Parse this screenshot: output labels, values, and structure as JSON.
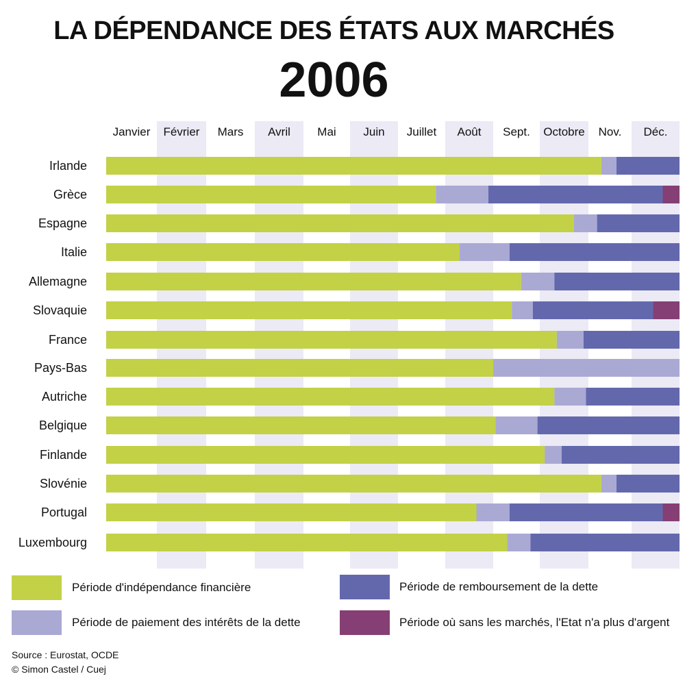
{
  "title": "LA DÉPENDANCE DES ÉTATS AUX MARCHÉS",
  "subtitle": "2006",
  "colors": {
    "independance": "#c2d146",
    "interets": "#aaa9d4",
    "remboursement": "#6368ad",
    "sans_argent": "#853f74",
    "column_shade": "#ebeaf5"
  },
  "legend": [
    {
      "key": "independance",
      "label": "Période d'indépendance financière"
    },
    {
      "key": "remboursement",
      "label": "Période de remboursement de la dette"
    },
    {
      "key": "interets",
      "label": "Période de paiement des intérêts de la dette"
    },
    {
      "key": "sans_argent",
      "label": "Période où sans les marchés, l'Etat n'a plus d'argent"
    }
  ],
  "source": {
    "line1": "Source : Eurostat, OCDE",
    "line2": "© Simon Castel / Cuej"
  },
  "chart_data": {
    "type": "bar",
    "orientation": "horizontal",
    "stacked": true,
    "x_unit": "months",
    "xlim": [
      0,
      12
    ],
    "months": [
      "Janvier",
      "Février",
      "Mars",
      "Avril",
      "Mai",
      "Juin",
      "Juillet",
      "Août",
      "Sept.",
      "Octobre",
      "Nov.",
      "Déc."
    ],
    "shaded_months": [
      "Février",
      "Avril",
      "Juin",
      "Août",
      "Octobre",
      "Déc."
    ],
    "categories": [
      "Irlande",
      "Grèce",
      "Espagne",
      "Italie",
      "Allemagne",
      "Slovaquie",
      "France",
      "Pays-Bas",
      "Autriche",
      "Belgique",
      "Finlande",
      "Slovénie",
      "Portugal",
      "Luxembourg"
    ],
    "series": [
      {
        "name": "Période d'indépendance financière",
        "key": "independance",
        "values": [
          10.3,
          6.8,
          9.7,
          7.3,
          8.6,
          8.4,
          9.35,
          8.0,
          9.3,
          8.05,
          9.1,
          10.3,
          7.65,
          8.3
        ]
      },
      {
        "name": "Période de paiement des intérêts de la dette",
        "key": "interets",
        "values": [
          0.35,
          1.1,
          0.5,
          1.05,
          0.7,
          0.45,
          0.55,
          4.0,
          0.65,
          0.9,
          0.35,
          0.35,
          0.7,
          0.5
        ]
      },
      {
        "name": "Période de remboursement de la dette",
        "key": "remboursement",
        "values": [
          1.35,
          3.75,
          1.8,
          3.65,
          2.7,
          2.6,
          2.1,
          0.0,
          2.05,
          3.05,
          2.55,
          1.35,
          3.3,
          3.2
        ]
      },
      {
        "name": "Période où sans les marchés, l'Etat n'a plus d'argent",
        "key": "sans_argent",
        "values": [
          0.0,
          0.35,
          0.0,
          0.0,
          0.0,
          0.55,
          0.0,
          0.0,
          0.0,
          0.0,
          0.0,
          0.0,
          0.35,
          0.0
        ]
      }
    ]
  }
}
